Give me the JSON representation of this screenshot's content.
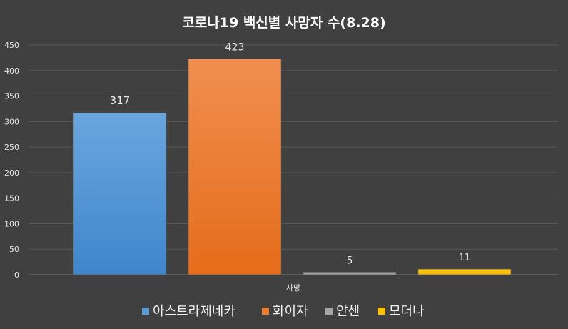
{
  "chart_data": {
    "type": "bar",
    "title": "코로나19 백신별 사망자 수(8.28)",
    "categories": [
      "사망"
    ],
    "series": [
      {
        "name": "아스트라제네카",
        "values": [
          317
        ],
        "color": "#5b9bd5"
      },
      {
        "name": "화이자",
        "values": [
          423
        ],
        "color": "#ed7d31"
      },
      {
        "name": "얀센",
        "values": [
          5
        ],
        "color": "#a5a5a5"
      },
      {
        "name": "모더나",
        "values": [
          11
        ],
        "color": "#ffc000"
      }
    ],
    "xlabel": "",
    "ylabel": "",
    "ylim": [
      0,
      450
    ],
    "yticks": [
      0,
      50,
      100,
      150,
      200,
      250,
      300,
      350,
      400,
      450
    ],
    "grid": true,
    "legend": "bottom"
  }
}
